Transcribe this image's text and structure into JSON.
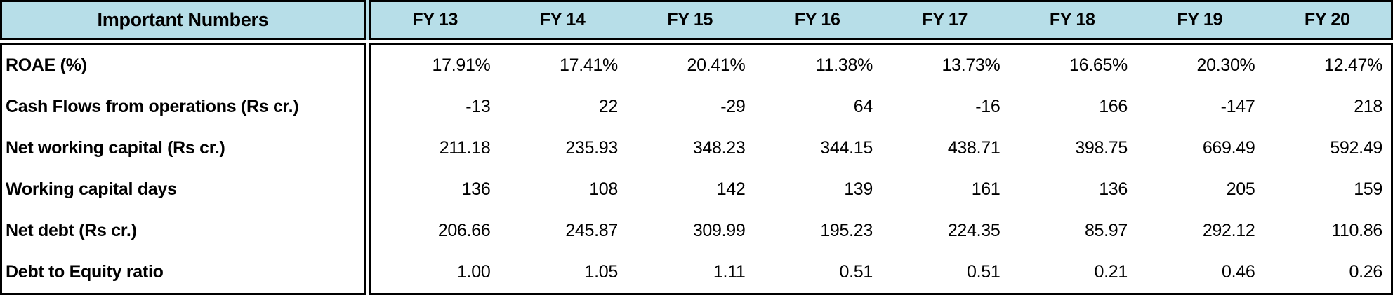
{
  "colors": {
    "header_bg": "#b7dee8",
    "border": "#000000",
    "text": "#000000",
    "body_bg": "#ffffff"
  },
  "chart_data": {
    "type": "table",
    "title": "Important Numbers",
    "corner_header": "Important Numbers",
    "column_headers": [
      "FY 13",
      "FY 14",
      "FY 15",
      "FY 16",
      "FY 17",
      "FY 18",
      "FY 19",
      "FY 20"
    ],
    "rows": [
      {
        "label": "ROAE (%)",
        "values": [
          "17.91%",
          "17.41%",
          "20.41%",
          "11.38%",
          "13.73%",
          "16.65%",
          "20.30%",
          "12.47%"
        ]
      },
      {
        "label": "Cash Flows from operations (Rs cr.)",
        "values": [
          "-13",
          "22",
          "-29",
          "64",
          "-16",
          "166",
          "-147",
          "218"
        ]
      },
      {
        "label": "Net working capital (Rs cr.)",
        "values": [
          "211.18",
          "235.93",
          "348.23",
          "344.15",
          "438.71",
          "398.75",
          "669.49",
          "592.49"
        ]
      },
      {
        "label": "Working capital days",
        "values": [
          "136",
          "108",
          "142",
          "139",
          "161",
          "136",
          "205",
          "159"
        ]
      },
      {
        "label": "Net debt (Rs cr.)",
        "values": [
          "206.66",
          "245.87",
          "309.99",
          "195.23",
          "224.35",
          "85.97",
          "292.12",
          "110.86"
        ]
      },
      {
        "label": "Debt to Equity ratio",
        "values": [
          "1.00",
          "1.05",
          "1.11",
          "0.51",
          "0.51",
          "0.21",
          "0.46",
          "0.26"
        ]
      }
    ]
  }
}
